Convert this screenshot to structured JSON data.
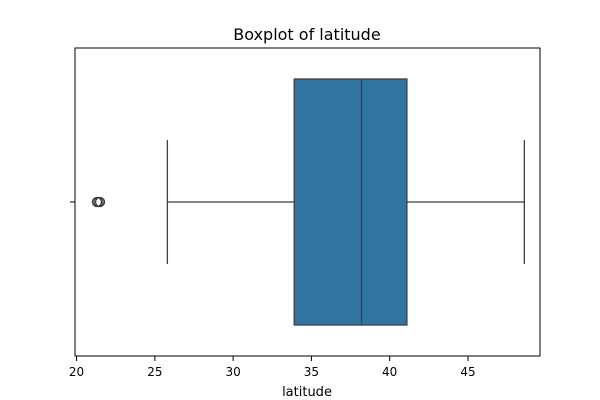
{
  "chart_data": {
    "type": "boxplot",
    "title": "Boxplot of latitude",
    "xlabel": "latitude",
    "ylabel": "",
    "orientation": "horizontal",
    "xlim": [
      19.9,
      49.6
    ],
    "xticks": [
      20,
      25,
      30,
      35,
      40,
      45
    ],
    "xtick_labels": [
      "20",
      "25",
      "30",
      "35",
      "40",
      "45"
    ],
    "grid": false,
    "box": {
      "whisker_low": 25.8,
      "q1": 33.9,
      "median": 38.2,
      "q3": 41.1,
      "whisker_high": 48.6,
      "outliers": [
        21.3,
        21.4,
        21.5
      ]
    },
    "colors": {
      "box_fill": "#3274a1",
      "line": "#3f3f3f"
    }
  }
}
